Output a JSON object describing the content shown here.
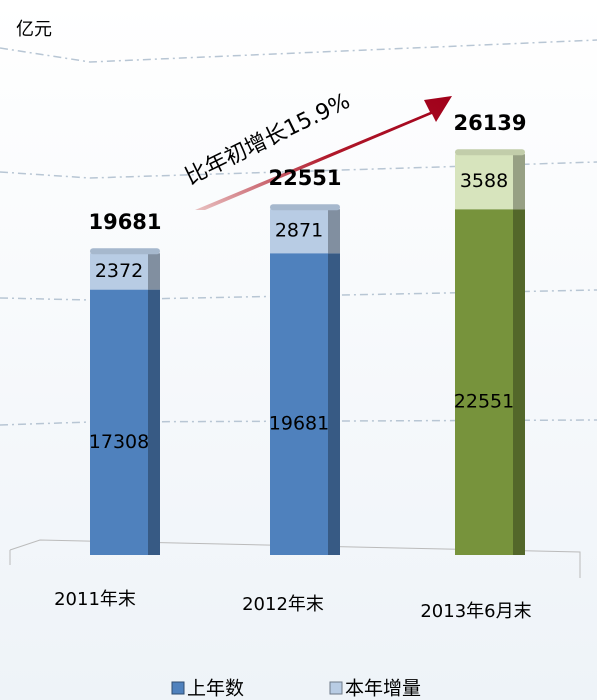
{
  "chart_data": {
    "type": "bar",
    "stacked": true,
    "unit_label": "亿元",
    "annotation": "比年初增长15.9%",
    "categories": [
      "2011年末",
      "2012年末",
      "2013年6月末"
    ],
    "series": [
      {
        "name": "上年数",
        "color": "#4f81bd",
        "colors": [
          "#4f81bd",
          "#4f81bd",
          "#77933c"
        ],
        "values": [
          17308,
          19681,
          22551
        ]
      },
      {
        "name": "本年增量",
        "color": "#b8cce4",
        "colors": [
          "#b8cce4",
          "#b8cce4",
          "#d7e4bd"
        ],
        "values": [
          2372,
          2871,
          3588
        ]
      }
    ],
    "totals": [
      19681,
      22551,
      26139
    ],
    "ylim": [
      0,
      30000
    ]
  }
}
